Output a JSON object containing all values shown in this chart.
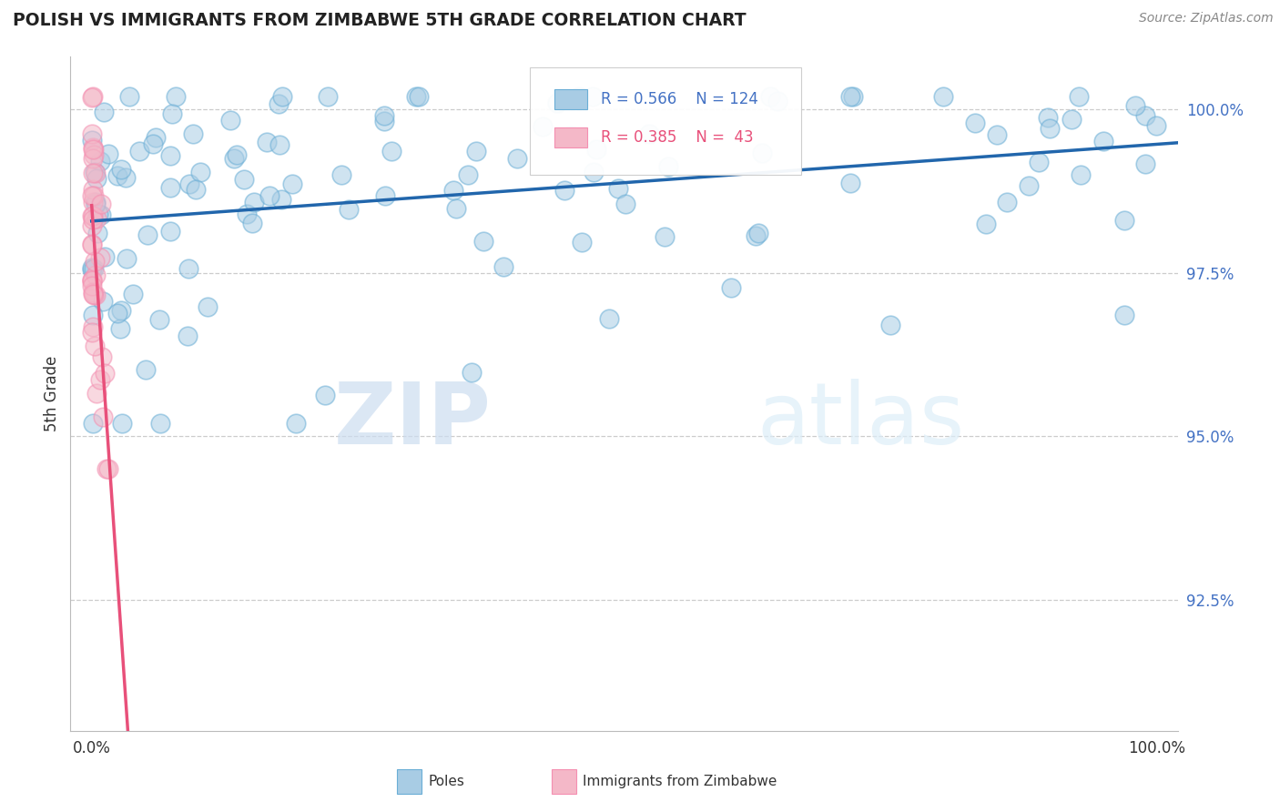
{
  "title": "POLISH VS IMMIGRANTS FROM ZIMBABWE 5TH GRADE CORRELATION CHART",
  "source_text": "Source: ZipAtlas.com",
  "ylabel": "5th Grade",
  "xlim": [
    -0.02,
    1.02
  ],
  "ylim": [
    0.905,
    1.008
  ],
  "yticks": [
    0.925,
    0.95,
    0.975,
    1.0
  ],
  "ytick_labels": [
    "92.5%",
    "95.0%",
    "97.5%",
    "100.0%"
  ],
  "xtick_left_label": "0.0%",
  "xtick_right_label": "100.0%",
  "legend_blue_r": "R = 0.566",
  "legend_blue_n": "N = 124",
  "legend_pink_r": "R = 0.385",
  "legend_pink_n": "N =  43",
  "blue_color": "#a8cce4",
  "pink_color": "#f4b8c8",
  "blue_edge_color": "#6aaed6",
  "pink_edge_color": "#f48fb1",
  "blue_line_color": "#2166ac",
  "pink_line_color": "#e8507a",
  "tick_color": "#4472c4",
  "watermark_zip": "ZIP",
  "watermark_atlas": "atlas",
  "background_color": "#ffffff",
  "grid_color": "#cccccc",
  "bottom_legend_blue_label": "Poles",
  "bottom_legend_pink_label": "Immigrants from Zimbabwe"
}
